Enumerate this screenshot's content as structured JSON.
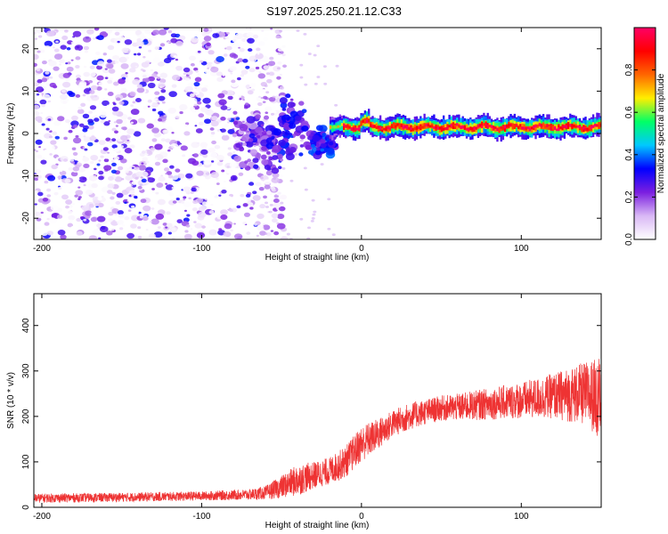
{
  "title": "S197.2025.250.21.12.C33",
  "chart_data": [
    {
      "type": "heatmap",
      "panel": "spectrogram",
      "xlabel": "Height of straight line (km)",
      "ylabel": "Frequency (Hz)",
      "xlim": [
        -205,
        150
      ],
      "ylim": [
        -25,
        25
      ],
      "xticks": [
        -200,
        -100,
        0,
        100
      ],
      "yticks": [
        -20,
        -10,
        0,
        10,
        20
      ],
      "xtick_labels": [
        "-200",
        "-100",
        "0",
        "100"
      ],
      "ytick_labels": [
        "-20",
        "-10",
        "0",
        "10",
        "20"
      ],
      "colorbar": {
        "label": "Normalized spectral amplitude",
        "range": [
          0,
          1
        ],
        "ticks": [
          0.0,
          0.2,
          0.4,
          0.6,
          0.8
        ],
        "tick_labels": [
          "0.0",
          "0.2",
          "0.4",
          "0.6",
          "0.8"
        ],
        "colormap": [
          "#ffffff",
          "#d9b8f5",
          "#7b1fe0",
          "#0000ff",
          "#00c8ff",
          "#00ff66",
          "#ffee00",
          "#ff6600",
          "#ff0000",
          "#ff0066"
        ]
      },
      "regions": [
        {
          "name": "noise",
          "x_range": [
            -205,
            -60
          ],
          "freq_range": [
            -25,
            25
          ],
          "amplitude_range": [
            0.0,
            0.15
          ]
        },
        {
          "name": "transition",
          "x_range": [
            -60,
            -20
          ],
          "freq_center": [
            -3,
            10
          ],
          "amplitude_range": [
            0.1,
            0.3
          ]
        },
        {
          "name": "signal-band",
          "x_range": [
            -20,
            150
          ],
          "center_freq_hz": 1.5,
          "amplitude_range": [
            0.5,
            1.0
          ]
        }
      ]
    },
    {
      "type": "line",
      "panel": "snr",
      "xlabel": "Height of straight line (km)",
      "ylabel": "SNR (10 * v/v)",
      "xlim": [
        -205,
        150
      ],
      "ylim": [
        0,
        470
      ],
      "xticks": [
        -200,
        -100,
        0,
        100
      ],
      "yticks": [
        0,
        100,
        200,
        300,
        400
      ],
      "xtick_labels": [
        "-200",
        "-100",
        "0",
        "100"
      ],
      "ytick_labels": [
        "0",
        "100",
        "200",
        "300",
        "400"
      ],
      "series": [
        {
          "name": "SNR",
          "color": "#ee3333",
          "x": [
            -205,
            -150,
            -100,
            -70,
            -60,
            -50,
            -40,
            -30,
            -20,
            -10,
            0,
            10,
            20,
            30,
            40,
            50,
            60,
            80,
            100,
            120,
            140,
            150
          ],
          "values": [
            20,
            22,
            25,
            28,
            32,
            45,
            60,
            70,
            80,
            100,
            140,
            160,
            185,
            200,
            210,
            218,
            220,
            228,
            235,
            245,
            250,
            240
          ],
          "noise_amplitude": [
            10,
            10,
            10,
            12,
            15,
            25,
            35,
            30,
            30,
            35,
            40,
            35,
            30,
            30,
            28,
            28,
            30,
            35,
            40,
            50,
            70,
            90
          ]
        }
      ]
    }
  ]
}
